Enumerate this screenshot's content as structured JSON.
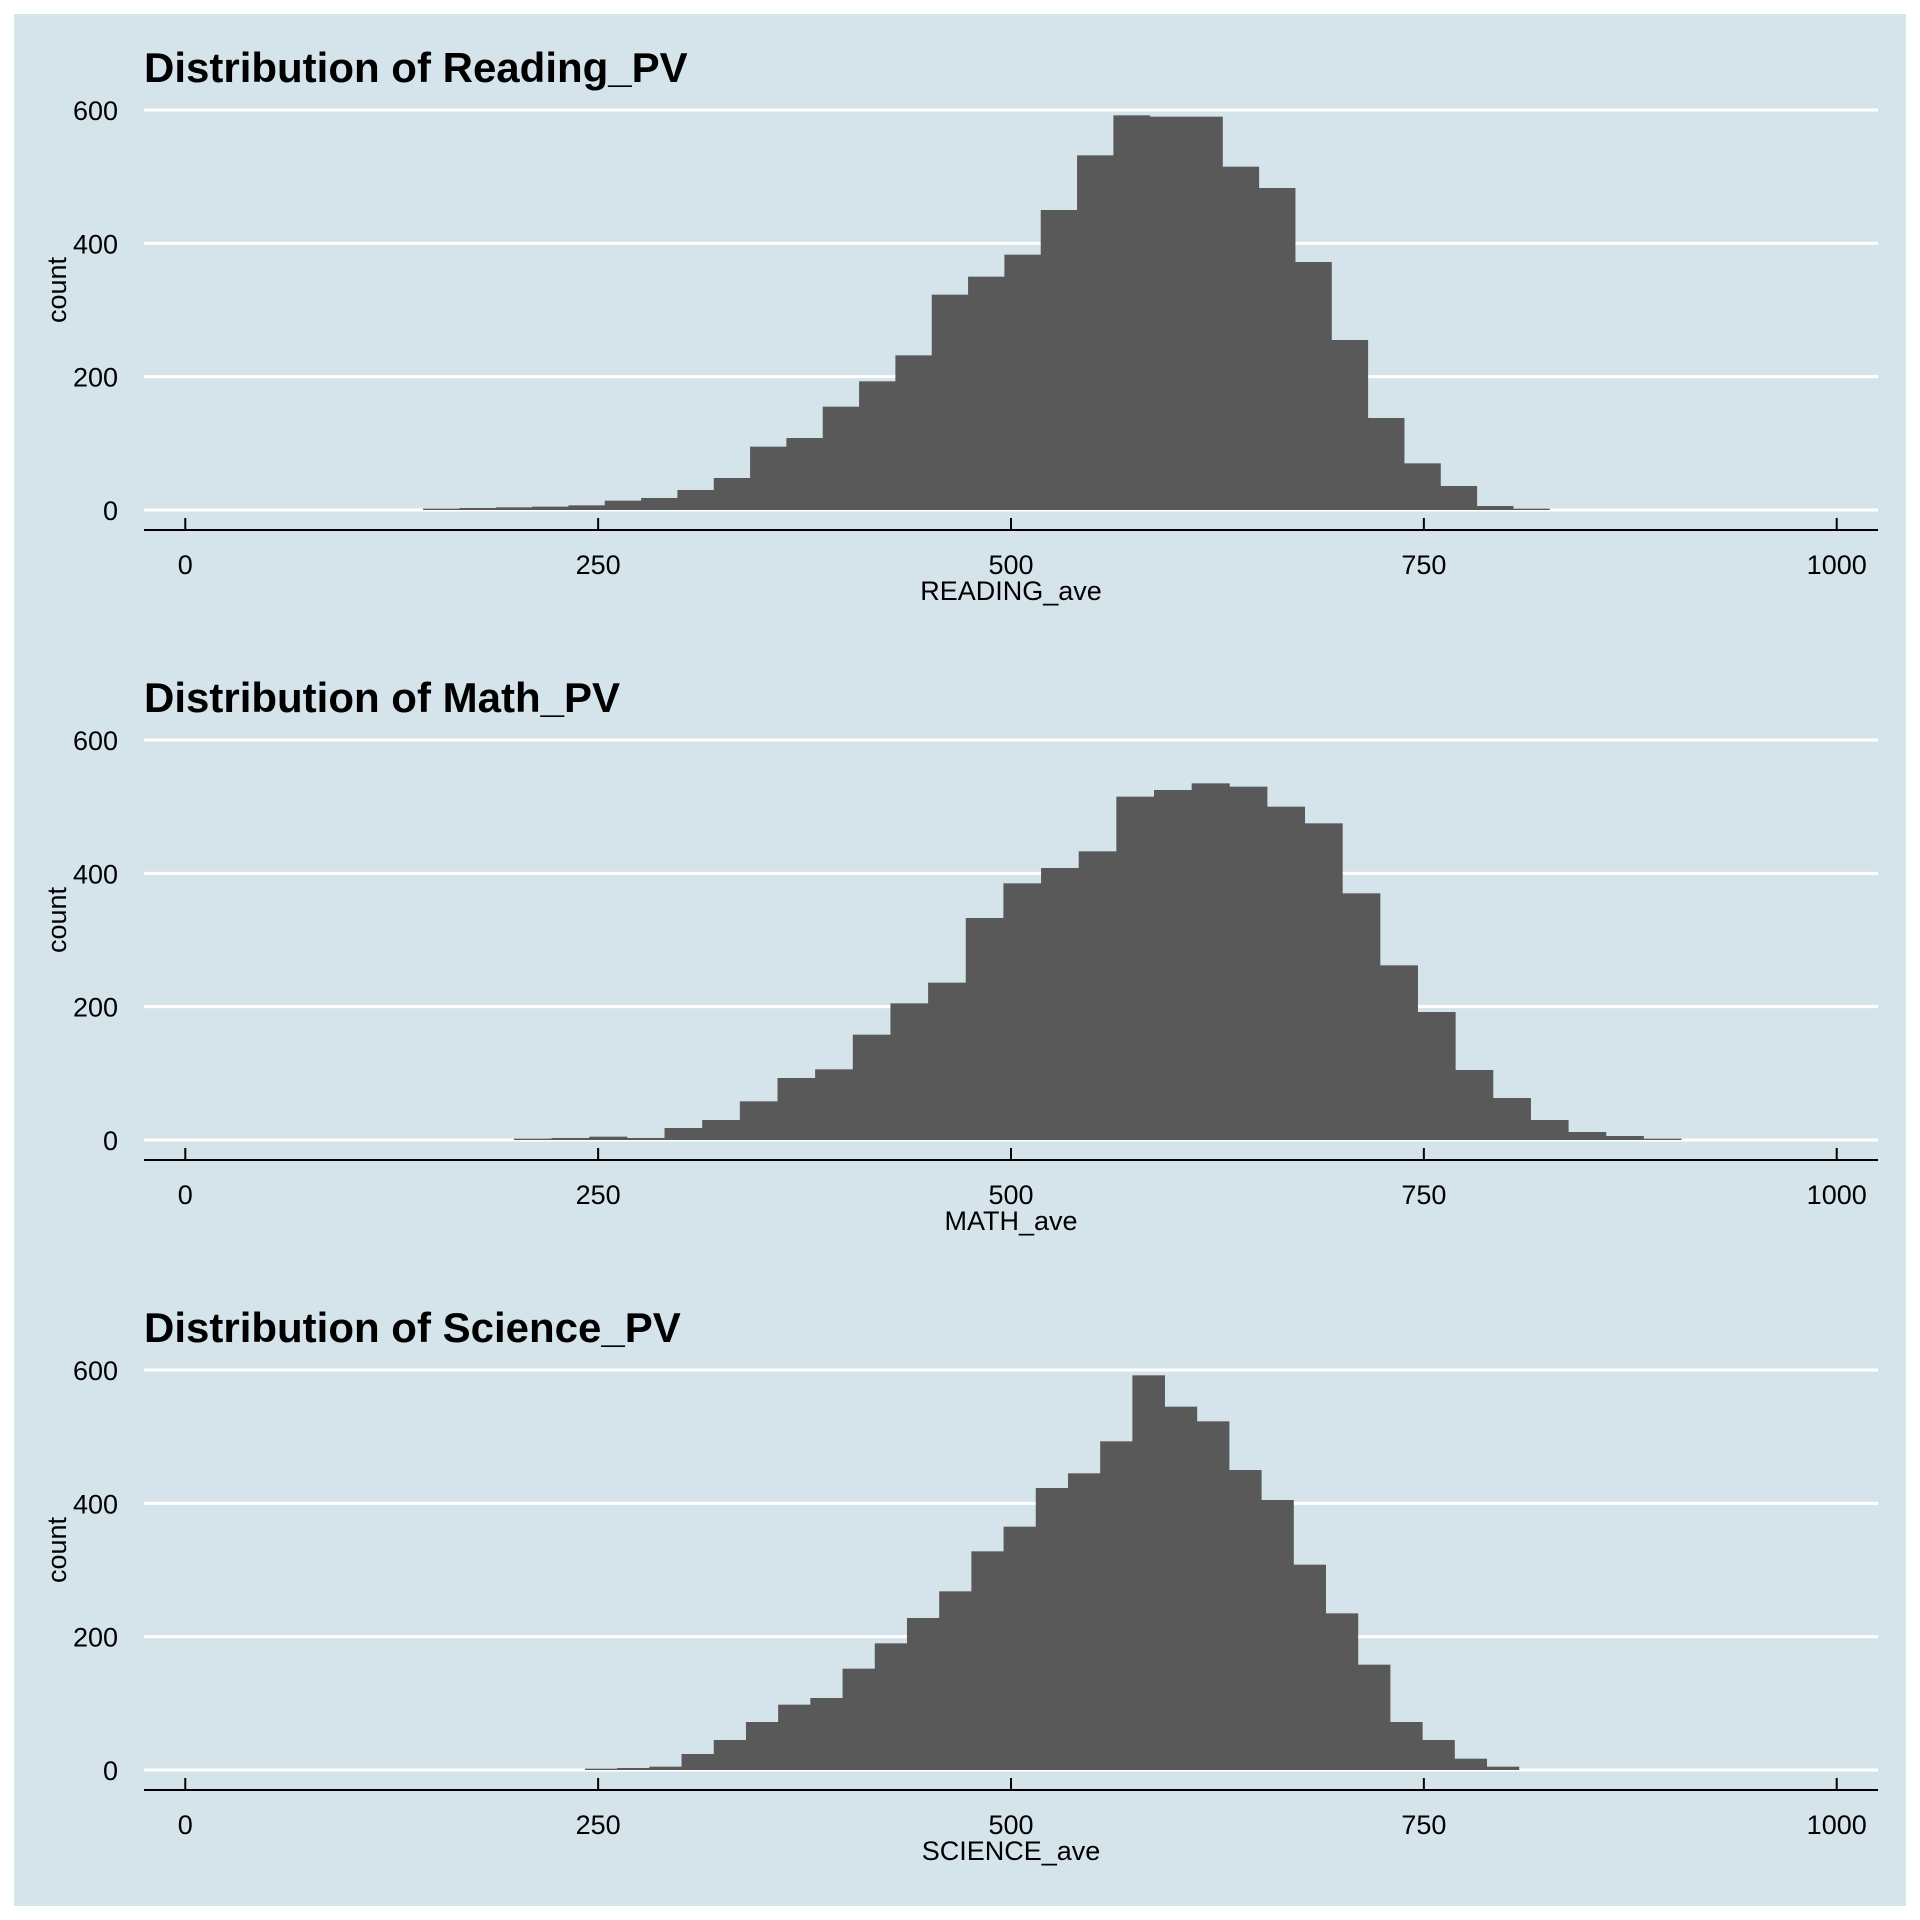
{
  "colors": {
    "background": "#d5e4eb",
    "bar": "#595959",
    "gridline": "#ffffff",
    "axis": "#000000"
  },
  "chart_data": [
    {
      "type": "bar",
      "title": "Distribution of Reading_PV",
      "xlabel": "READING_ave",
      "ylabel": "count",
      "xlim": [
        -25,
        1025
      ],
      "ylim": [
        -30,
        630
      ],
      "xticks": [
        0,
        250,
        500,
        750,
        1000
      ],
      "yticks": [
        0,
        200,
        400,
        600
      ],
      "grid": "horizontal",
      "bin_start": 144,
      "bin_width": 22,
      "values": [
        2,
        3,
        4,
        5,
        7,
        14,
        18,
        30,
        48,
        95,
        108,
        155,
        193,
        232,
        323,
        350,
        383,
        450,
        532,
        592,
        590,
        590,
        515,
        483,
        372,
        255,
        138,
        70,
        36,
        6,
        2
      ]
    },
    {
      "type": "bar",
      "title": "Distribution of Math_PV",
      "xlabel": "MATH_ave",
      "ylabel": "count",
      "xlim": [
        -25,
        1025
      ],
      "ylim": [
        -30,
        630
      ],
      "xticks": [
        0,
        250,
        500,
        750,
        1000
      ],
      "yticks": [
        0,
        200,
        400,
        600
      ],
      "grid": "horizontal",
      "bin_start": 199,
      "bin_width": 22.8,
      "values": [
        2,
        3,
        5,
        3,
        18,
        30,
        58,
        93,
        106,
        158,
        205,
        236,
        333,
        385,
        408,
        433,
        515,
        525,
        535,
        530,
        500,
        475,
        370,
        262,
        192,
        105,
        63,
        30,
        12,
        6,
        2
      ]
    },
    {
      "type": "bar",
      "title": "Distribution of Science_PV",
      "xlabel": "SCIENCE_ave",
      "ylabel": "count",
      "xlim": [
        -25,
        1025
      ],
      "ylim": [
        -30,
        630
      ],
      "xticks": [
        0,
        250,
        500,
        750,
        1000
      ],
      "yticks": [
        0,
        200,
        400,
        600
      ],
      "grid": "horizontal",
      "bin_start": 242,
      "bin_width": 19.5,
      "values": [
        2,
        3,
        5,
        24,
        45,
        72,
        98,
        108,
        152,
        190,
        228,
        268,
        328,
        365,
        423,
        445,
        493,
        592,
        545,
        523,
        450,
        405,
        308,
        235,
        158,
        72,
        45,
        17,
        5
      ]
    }
  ]
}
